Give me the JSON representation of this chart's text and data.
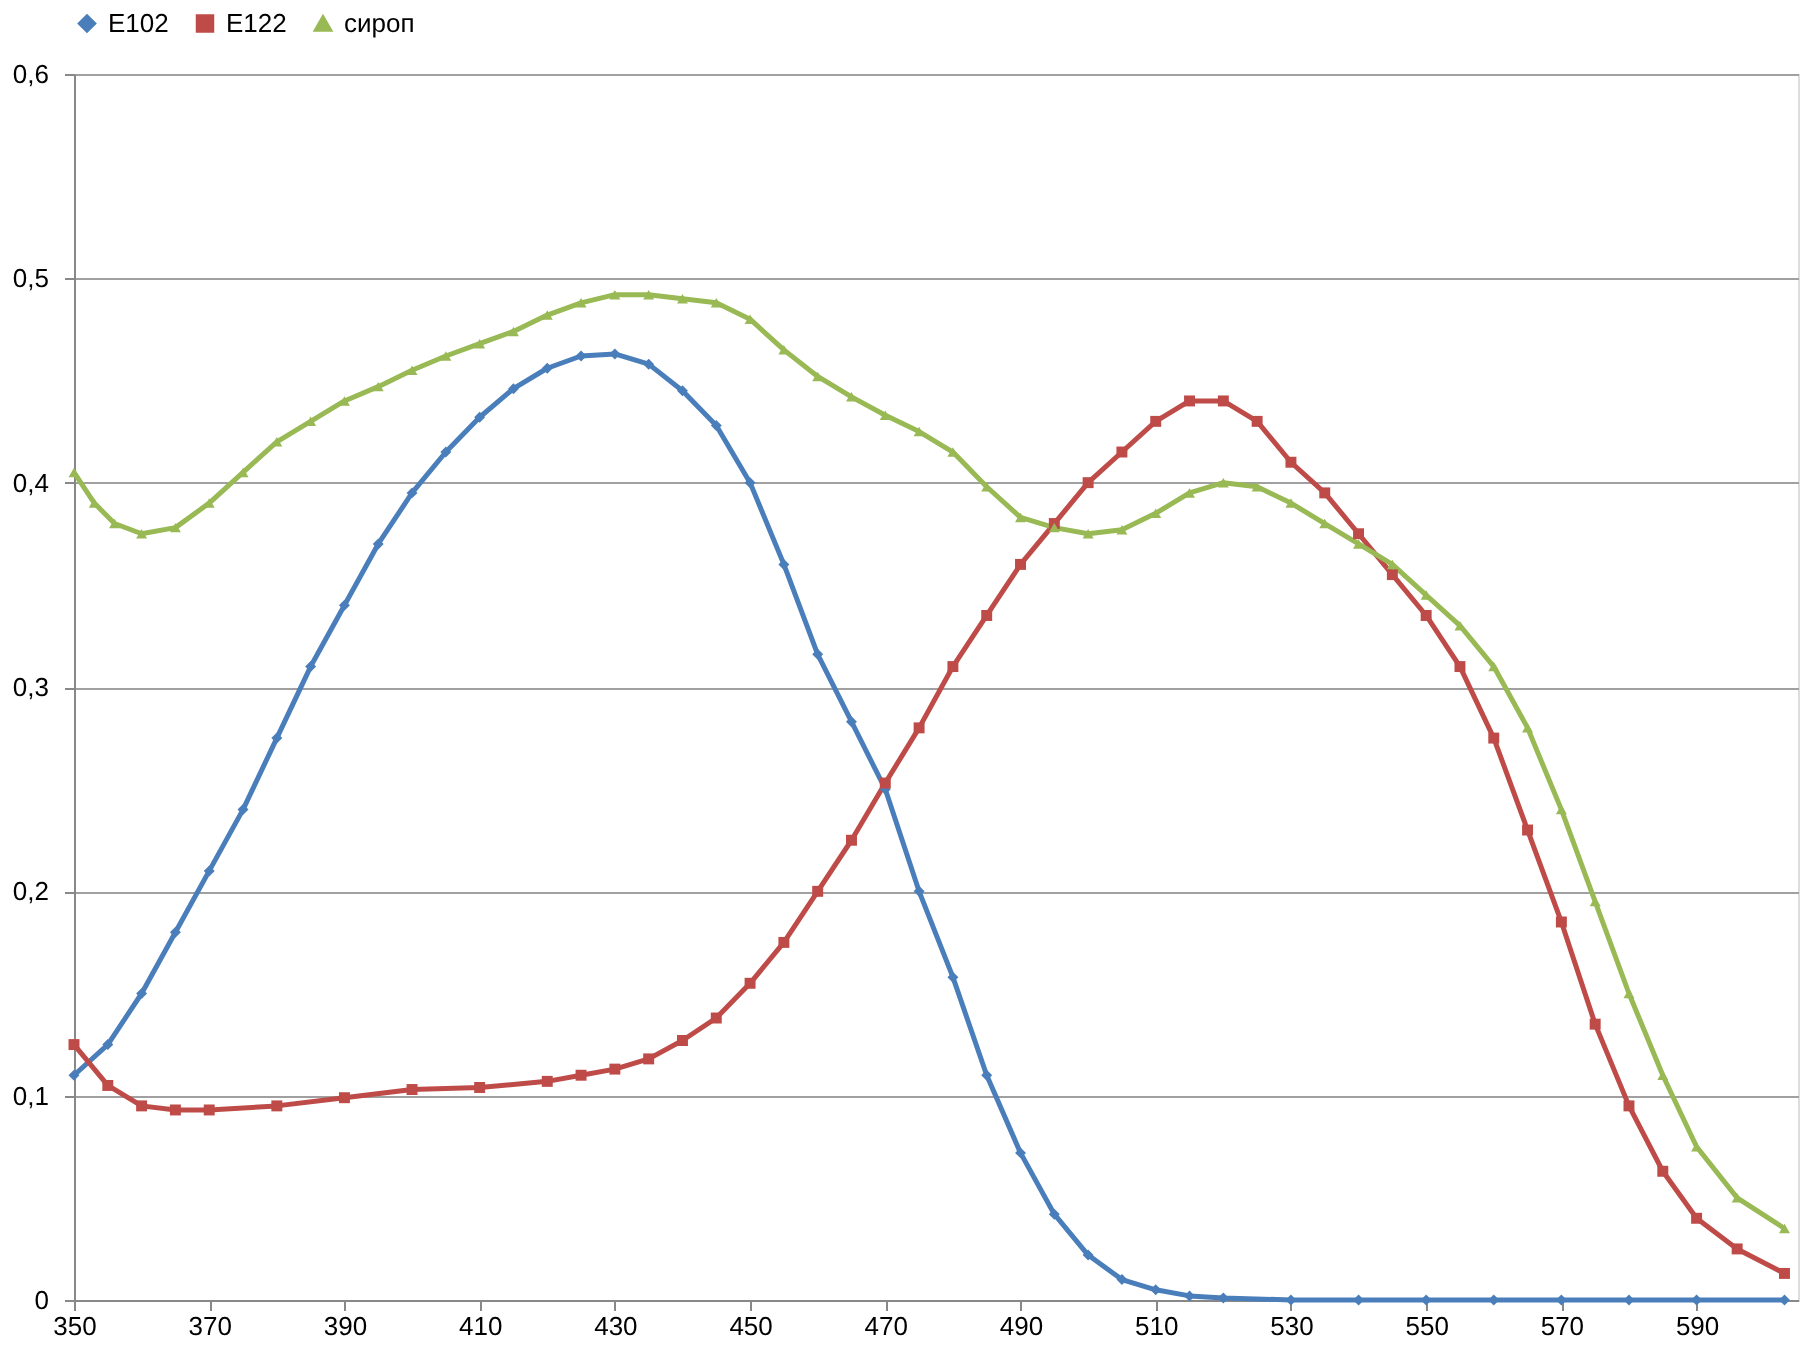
{
  "chart_data": {
    "type": "line",
    "xlim": [
      350,
      605
    ],
    "xticks": [
      350,
      370,
      390,
      410,
      430,
      450,
      470,
      490,
      510,
      530,
      550,
      570,
      590
    ],
    "ylim": [
      0,
      0.6
    ],
    "yticks": [
      0,
      {
        "value": 0.1,
        "label": "0,1"
      },
      {
        "value": 0.2,
        "label": "0,2"
      },
      {
        "value": 0.3,
        "label": "0,3"
      },
      {
        "value": 0.4,
        "label": "0,4"
      },
      {
        "value": 0.5,
        "label": "0,5"
      },
      {
        "value": 0.6,
        "label": "0,6"
      }
    ],
    "grid": "y",
    "legend": "top",
    "line_style": "solid",
    "series": [
      {
        "name": "E102",
        "color": "#4a7ebb",
        "marker": "diamond",
        "x": [
          350,
          355,
          360,
          365,
          370,
          375,
          380,
          385,
          390,
          395,
          400,
          405,
          410,
          415,
          420,
          425,
          430,
          435,
          440,
          445,
          450,
          455,
          460,
          465,
          470,
          475,
          480,
          485,
          490,
          495,
          500,
          505,
          510,
          515,
          520,
          530,
          540,
          550,
          560,
          570,
          580,
          590,
          603
        ],
        "values": [
          0.11,
          0.125,
          0.15,
          0.18,
          0.21,
          0.24,
          0.275,
          0.31,
          0.34,
          0.37,
          0.395,
          0.415,
          0.432,
          0.446,
          0.456,
          0.462,
          0.463,
          0.458,
          0.445,
          0.428,
          0.4,
          0.36,
          0.316,
          0.283,
          0.25,
          0.2,
          0.158,
          0.11,
          0.072,
          0.042,
          0.022,
          0.01,
          0.005,
          0.002,
          0.001,
          0,
          0,
          0,
          0,
          0,
          0,
          0,
          0
        ]
      },
      {
        "name": "E122",
        "color": "#be4b48",
        "marker": "square",
        "x": [
          350,
          355,
          360,
          365,
          370,
          380,
          390,
          400,
          410,
          420,
          425,
          430,
          435,
          440,
          445,
          450,
          455,
          460,
          465,
          470,
          475,
          480,
          485,
          490,
          495,
          500,
          505,
          510,
          515,
          520,
          525,
          530,
          535,
          540,
          545,
          550,
          555,
          560,
          565,
          570,
          575,
          580,
          585,
          590,
          596,
          603
        ],
        "values": [
          0.125,
          0.105,
          0.095,
          0.093,
          0.093,
          0.095,
          0.099,
          0.103,
          0.104,
          0.107,
          0.11,
          0.113,
          0.118,
          0.127,
          0.138,
          0.155,
          0.175,
          0.2,
          0.225,
          0.253,
          0.28,
          0.31,
          0.335,
          0.36,
          0.38,
          0.4,
          0.415,
          0.43,
          0.44,
          0.44,
          0.43,
          0.41,
          0.395,
          0.375,
          0.355,
          0.335,
          0.31,
          0.275,
          0.23,
          0.185,
          0.135,
          0.095,
          0.063,
          0.04,
          0.025,
          0.013
        ]
      },
      {
        "name": "сироп",
        "color": "#98b954",
        "marker": "triangle",
        "x": [
          350,
          353,
          356,
          360,
          365,
          370,
          375,
          380,
          385,
          390,
          395,
          400,
          405,
          410,
          415,
          420,
          425,
          430,
          435,
          440,
          445,
          450,
          455,
          460,
          465,
          470,
          475,
          480,
          485,
          490,
          495,
          500,
          505,
          510,
          515,
          520,
          525,
          530,
          535,
          540,
          545,
          550,
          555,
          560,
          565,
          570,
          575,
          580,
          585,
          590,
          596,
          603
        ],
        "values": [
          0.405,
          0.39,
          0.38,
          0.375,
          0.378,
          0.39,
          0.405,
          0.42,
          0.43,
          0.44,
          0.447,
          0.455,
          0.462,
          0.468,
          0.474,
          0.482,
          0.488,
          0.492,
          0.492,
          0.49,
          0.488,
          0.48,
          0.465,
          0.452,
          0.442,
          0.433,
          0.425,
          0.415,
          0.398,
          0.383,
          0.378,
          0.375,
          0.377,
          0.385,
          0.395,
          0.4,
          0.398,
          0.39,
          0.38,
          0.37,
          0.36,
          0.345,
          0.33,
          0.31,
          0.28,
          0.24,
          0.195,
          0.15,
          0.11,
          0.075,
          0.05,
          0.035
        ]
      }
    ]
  }
}
